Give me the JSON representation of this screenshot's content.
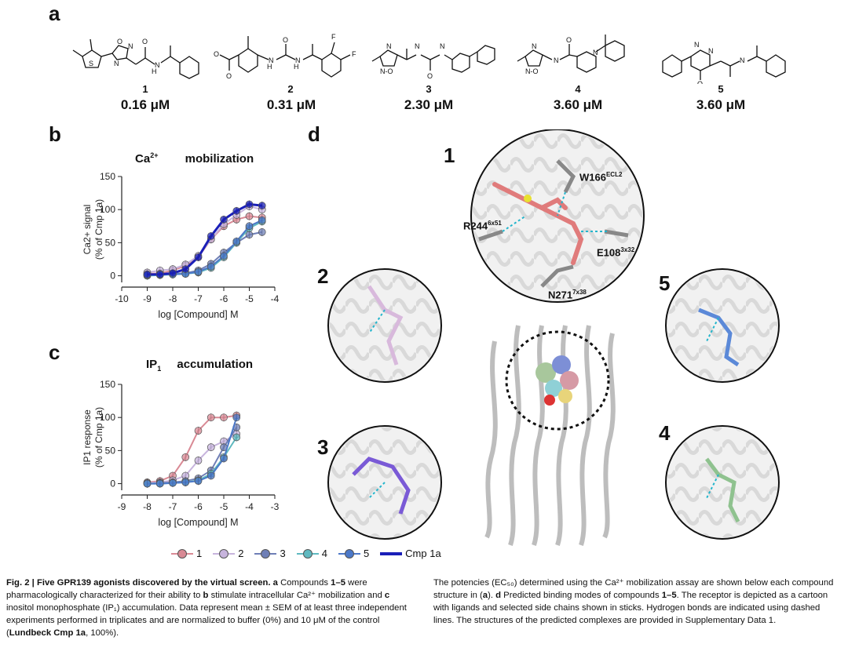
{
  "panels": {
    "a": "a",
    "b": "b",
    "c": "c",
    "d": "d"
  },
  "compounds": [
    {
      "num": "1",
      "potency": "0.16 μM"
    },
    {
      "num": "2",
      "potency": "0.31 μM"
    },
    {
      "num": "3",
      "potency": "2.30 μM"
    },
    {
      "num": "4",
      "potency": "3.60 μM"
    },
    {
      "num": "5",
      "potency": "3.60 μM"
    }
  ],
  "colors": {
    "c1": "#d98a95",
    "c2": "#c7b4dd",
    "c3": "#6f7fb6",
    "c4": "#5fb9c0",
    "c5": "#4b78c8",
    "cmp1a": "#1a1fb8"
  },
  "chart_data": [
    {
      "type": "line",
      "title": "Ca2+ mobilization",
      "title_main": "Ca",
      "title_sup": "2+",
      "title_rest": "mobilization",
      "ylabel_line1": "Ca2+ signal",
      "ylabel_line2": "(% of Cmp 1a)",
      "xlabel": "log [Compound] M",
      "xlim": [
        -10,
        -4
      ],
      "ylim": [
        -10,
        150
      ],
      "xticks": [
        -10,
        -9,
        -8,
        -7,
        -6,
        -5,
        -4
      ],
      "yticks": [
        0,
        50,
        100,
        150
      ],
      "series": [
        {
          "name": "1",
          "color": "#d98a95",
          "x": [
            -9,
            -8.5,
            -8,
            -7.5,
            -7,
            -6.5,
            -6,
            -5.5,
            -5,
            -4.5
          ],
          "y": [
            3,
            4,
            8,
            15,
            28,
            55,
            75,
            85,
            90,
            88
          ]
        },
        {
          "name": "2",
          "color": "#c7b4dd",
          "x": [
            -9,
            -8.5,
            -8,
            -7.5,
            -7,
            -6.5,
            -6,
            -5.5,
            -5,
            -4.5
          ],
          "y": [
            5,
            8,
            10,
            17,
            30,
            55,
            78,
            92,
            105,
            100
          ]
        },
        {
          "name": "3",
          "color": "#6f7fb6",
          "x": [
            -9,
            -8.5,
            -8,
            -7.5,
            -7,
            -6.5,
            -6,
            -5.5,
            -5,
            -4.5
          ],
          "y": [
            2,
            3,
            3,
            4,
            8,
            18,
            35,
            50,
            62,
            66
          ]
        },
        {
          "name": "4",
          "color": "#5fb9c0",
          "x": [
            -9,
            -8.5,
            -8,
            -7.5,
            -7,
            -6.5,
            -6,
            -5.5,
            -5,
            -4.5
          ],
          "y": [
            0,
            1,
            2,
            3,
            5,
            12,
            28,
            50,
            72,
            82
          ]
        },
        {
          "name": "5",
          "color": "#4b78c8",
          "x": [
            -9,
            -8.5,
            -8,
            -7.5,
            -7,
            -6.5,
            -6,
            -5.5,
            -5,
            -4.5
          ],
          "y": [
            1,
            2,
            2,
            3,
            6,
            14,
            30,
            52,
            75,
            84
          ]
        },
        {
          "name": "Cmp 1a",
          "color": "#1a1fb8",
          "x": [
            -9,
            -8.5,
            -8,
            -7.5,
            -7,
            -6.5,
            -6,
            -5.5,
            -5,
            -4.5
          ],
          "y": [
            2,
            2,
            4,
            10,
            28,
            60,
            85,
            98,
            108,
            106
          ]
        }
      ]
    },
    {
      "type": "line",
      "title": "IP1 accumulation",
      "title_main": "IP",
      "title_sub": "1",
      "title_rest": "accumulation",
      "ylabel_line1": "IP1 response",
      "ylabel_line2": "(% of Cmp 1a)",
      "xlabel": "log [Compound] M",
      "xlim": [
        -9,
        -3
      ],
      "ylim": [
        -10,
        150
      ],
      "xticks": [
        -9,
        -8,
        -7,
        -6,
        -5,
        -4,
        -3
      ],
      "yticks": [
        0,
        50,
        100,
        150
      ],
      "series": [
        {
          "name": "1",
          "color": "#d98a95",
          "x": [
            -8,
            -7.5,
            -7,
            -6.5,
            -6,
            -5.5,
            -5,
            -4.5
          ],
          "y": [
            2,
            4,
            12,
            40,
            80,
            100,
            100,
            103
          ]
        },
        {
          "name": "2",
          "color": "#c7b4dd",
          "x": [
            -8,
            -7.5,
            -7,
            -6.5,
            -6,
            -5.5,
            -5,
            -4.5
          ],
          "y": [
            1,
            2,
            5,
            12,
            35,
            55,
            64,
            75
          ]
        },
        {
          "name": "3",
          "color": "#6f7fb6",
          "x": [
            -8,
            -7.5,
            -7,
            -6.5,
            -6,
            -5.5,
            -5,
            -4.5
          ],
          "y": [
            0,
            1,
            2,
            4,
            8,
            20,
            55,
            85
          ]
        },
        {
          "name": "4",
          "color": "#5fb9c0",
          "x": [
            -8,
            -7.5,
            -7,
            -6.5,
            -6,
            -5.5,
            -5,
            -4.5
          ],
          "y": [
            0,
            0,
            1,
            2,
            5,
            15,
            40,
            70
          ]
        },
        {
          "name": "5",
          "color": "#4b78c8",
          "x": [
            -8,
            -7.5,
            -7,
            -6.5,
            -6,
            -5.5,
            -5,
            -4.5
          ],
          "y": [
            0,
            0,
            1,
            2,
            4,
            12,
            38,
            100
          ]
        }
      ]
    }
  ],
  "legend": [
    {
      "name": "1",
      "color": "#d98a95"
    },
    {
      "name": "2",
      "color": "#c7b4dd"
    },
    {
      "name": "3",
      "color": "#6f7fb6"
    },
    {
      "name": "4",
      "color": "#5fb9c0"
    },
    {
      "name": "5",
      "color": "#4b78c8"
    },
    {
      "name": "Cmp 1a",
      "color": "#1a1fb8"
    }
  ],
  "panel_d": {
    "circle_labels": {
      "c1": "1",
      "c2": "2",
      "c3": "3",
      "c4": "4",
      "c5": "5"
    },
    "residues": {
      "w166": "W166",
      "w166_sup": "ECL2",
      "r244": "R244",
      "r244_sup": "6x51",
      "e108": "E108",
      "e108_sup": "3x32",
      "n271": "N271",
      "n271_sup": "7x38"
    }
  },
  "caption": {
    "left_1": "Fig. 2 | Five GPR139 agonists discovered by the virtual screen.",
    "left_2": " a ",
    "left_3": "Compounds ",
    "left_4": "1–5",
    "left_5": " were pharmacologically characterized for their ability to ",
    "left_6": "b",
    "left_7": " stimulate intracellular Ca²⁺ mobilization and ",
    "left_8": "c",
    "left_9": " inositol monophosphate (IP₁) accumulation. Data represent mean ± SEM of at least three independent experiments performed in triplicates and are normalized to buffer (0%) and 10 μM of the control (",
    "left_10": "Lundbeck Cmp 1a",
    "left_11": ", 100%).",
    "right_1": "The potencies (EC₅₀) determined using the Ca²⁺ mobilization assay are shown below each compound structure in (",
    "right_2": "a",
    "right_3": "). ",
    "right_4": "d",
    "right_5": " Predicted binding modes of compounds ",
    "right_6": "1–5",
    "right_7": ". The receptor is depicted as a cartoon with ligands and selected side chains shown in sticks. Hydrogen bonds are indicated using dashed lines. The structures of the predicted complexes are provided in Supplementary Data 1."
  }
}
